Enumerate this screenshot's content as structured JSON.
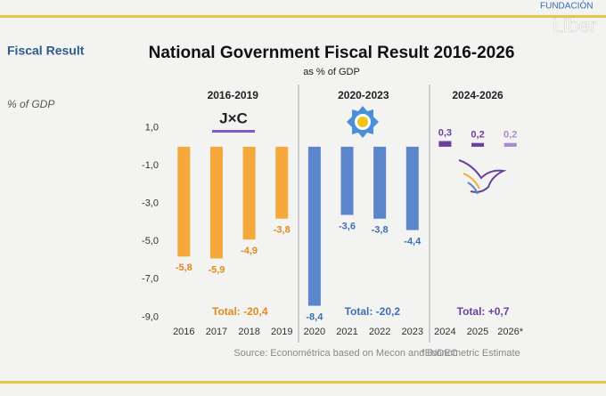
{
  "chart_data": {
    "type": "bar",
    "title": "National Government Fiscal Result 2016-2026",
    "subtitle": "as % of GDP",
    "side_title": "Fiscal Result",
    "side_unit": "% of GDP",
    "brand": [
      "FUNDACIÓN",
      "Liber"
    ],
    "logo_text": "J×C",
    "group_labels": [
      "2016-2019",
      "2020-2023",
      "2024-2026"
    ],
    "group_totals": [
      "Total: -20,4",
      "Total: -20,2",
      "Total: +0,7"
    ],
    "categories": [
      "2016",
      "2017",
      "2018",
      "2019",
      "2020",
      "2021",
      "2022",
      "2023",
      "2024",
      "2025",
      "2026*"
    ],
    "values": [
      -5.8,
      -5.9,
      -4.9,
      -3.8,
      -8.4,
      -3.6,
      -3.8,
      -4.4,
      0.3,
      0.2,
      0.2
    ],
    "value_labels": [
      "-5,8",
      "-5,9",
      "-4,9",
      "-3,8",
      "-8,4",
      "-3,6",
      "-3,8",
      "-4,4",
      "0,3",
      "0,2",
      "0,2"
    ],
    "colors": [
      "#f6a93b",
      "#f6a93b",
      "#f6a93b",
      "#f6a93b",
      "#5b86cc",
      "#5b86cc",
      "#5b86cc",
      "#5b86cc",
      "#6b3fa0",
      "#6b3fa0",
      "#a78ccb"
    ],
    "label_colors": [
      "#e08a1e",
      "#e08a1e",
      "#e08a1e",
      "#e08a1e",
      "#3f6fb8",
      "#3f6fb8",
      "#3f6fb8",
      "#3f6fb8",
      "#6b3fa0",
      "#6b3fa0",
      "#a78ccb"
    ],
    "ylim": [
      -9.5,
      1.5
    ],
    "yticks": [
      {
        "value": 1,
        "label": "1,0"
      },
      {
        "value": -1,
        "label": "-1,0"
      },
      {
        "value": -3,
        "label": "-3,0"
      },
      {
        "value": -5,
        "label": "-5,0"
      },
      {
        "value": -7,
        "label": "-7,0"
      },
      {
        "value": -9,
        "label": "-9,0"
      }
    ],
    "source": "Source: Econométrica based on Mecon and INDEC",
    "footnote": "*Econometric Estimate"
  }
}
